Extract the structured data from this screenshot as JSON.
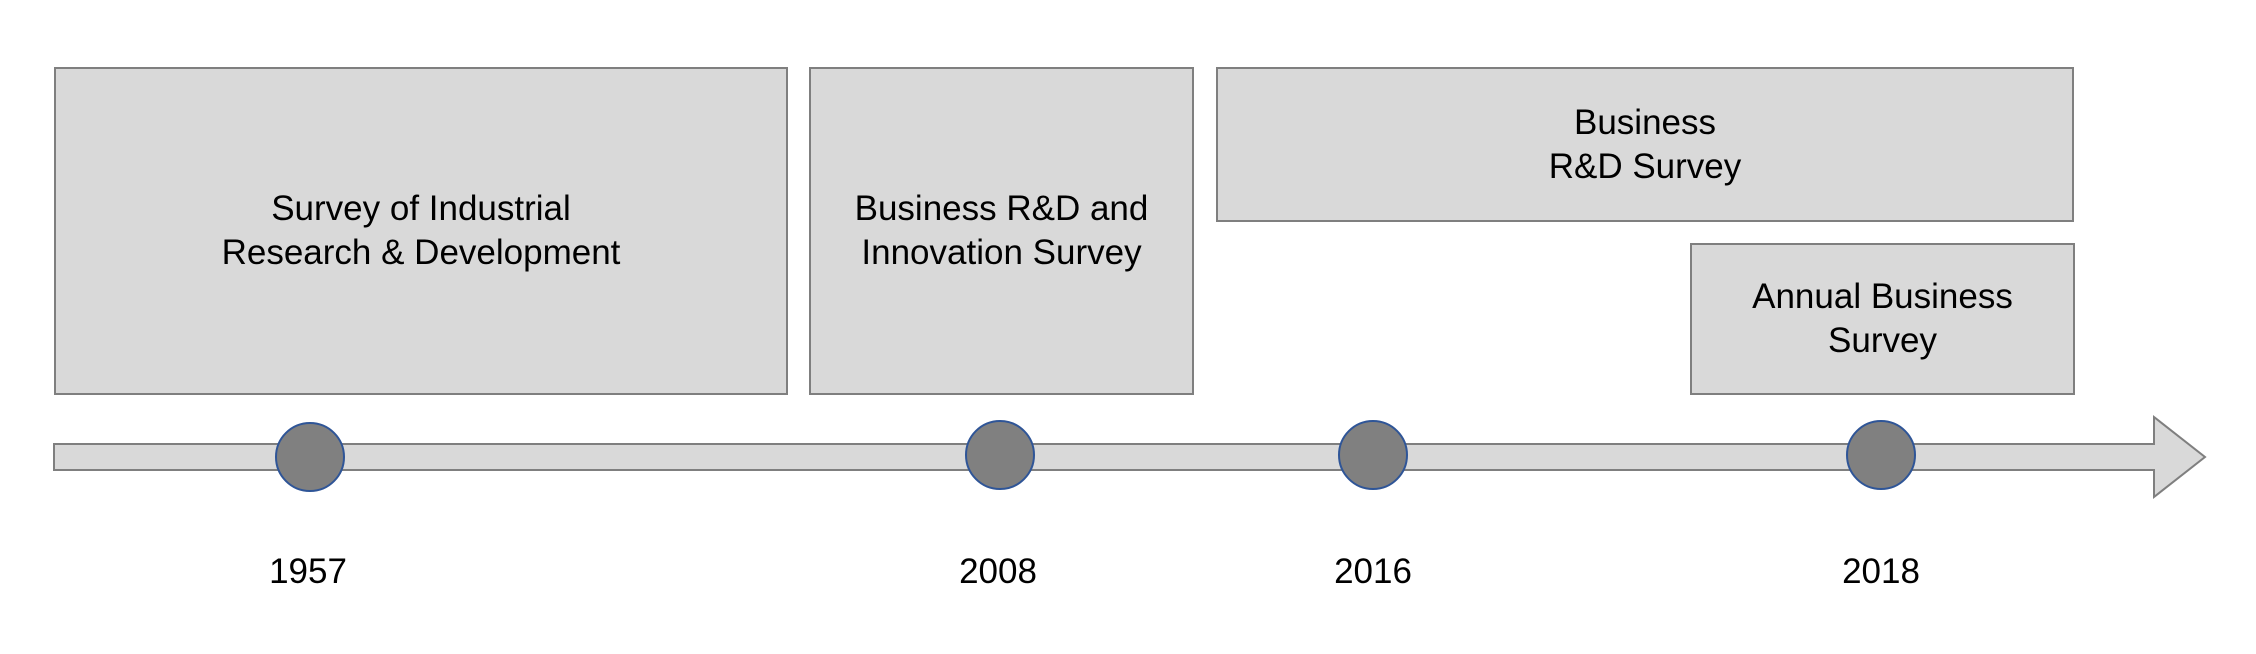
{
  "colors": {
    "box_fill": "#d9d9d9",
    "box_border": "#7f7f7f",
    "arrow_fill": "#d9d9d9",
    "marker_fill": "#808080",
    "marker_border": "#2f5597"
  },
  "boxes": {
    "industrial": "Survey of Industrial\nResearch & Development",
    "brdis": "Business R&D and\nInnovation Survey",
    "brds": "Business\nR&D Survey",
    "abs": "Annual Business\nSurvey"
  },
  "timeline": {
    "years": [
      "1957",
      "2008",
      "2016",
      "2018"
    ]
  }
}
